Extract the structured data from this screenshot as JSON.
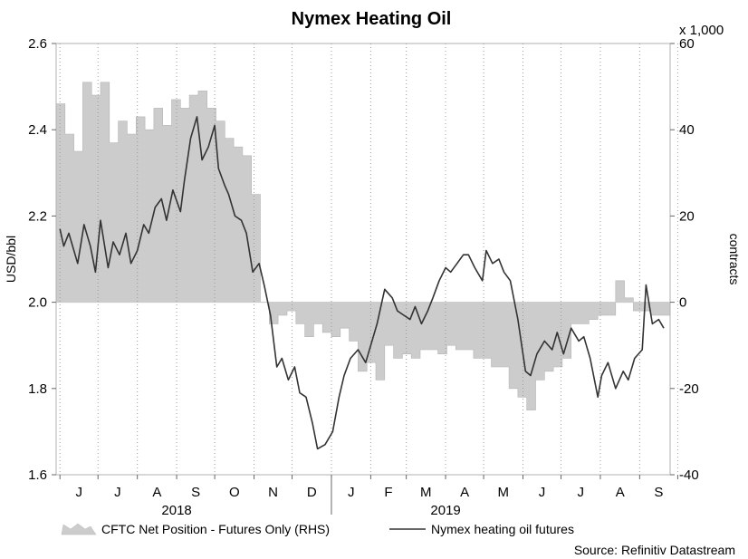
{
  "chart_data": {
    "type": "line",
    "title": "Nymex Heating Oil",
    "y_left_label": "USD/bbl",
    "y_right_label": "contracts",
    "y_right_unit": "x 1,000",
    "y_left_lim": [
      1.6,
      2.6
    ],
    "y_right_lim": [
      -40,
      60
    ],
    "y_left_ticks": [
      "1.6",
      "1.8",
      "2.0",
      "2.2",
      "2.4",
      "2.6"
    ],
    "y_right_ticks": [
      "-40",
      "-20",
      "0",
      "20",
      "40",
      "60"
    ],
    "x_month_labels": [
      "J",
      "J",
      "A",
      "S",
      "O",
      "N",
      "D",
      "J",
      "F",
      "M",
      "A",
      "M",
      "J",
      "J",
      "A",
      "S"
    ],
    "x_year_labels": [
      "2018",
      "2019"
    ],
    "grid": "vertical-dotted",
    "legend": "bottom",
    "source": "Source: Refinitiv Datastream",
    "series": [
      {
        "name": "CFTC Net Position - Futures Only (RHS)",
        "style": "area",
        "color": "#cccccc",
        "axis": "right",
        "x": [
          "2018-06-01",
          "2018-06-05",
          "2018-06-12",
          "2018-06-19",
          "2018-06-26",
          "2018-07-03",
          "2018-07-10",
          "2018-07-17",
          "2018-07-24",
          "2018-07-31",
          "2018-08-07",
          "2018-08-14",
          "2018-08-21",
          "2018-08-28",
          "2018-09-04",
          "2018-09-11",
          "2018-09-18",
          "2018-09-25",
          "2018-10-02",
          "2018-10-09",
          "2018-10-16",
          "2018-10-23",
          "2018-10-30",
          "2018-11-06",
          "2018-11-13",
          "2018-11-20",
          "2018-11-27",
          "2018-12-04",
          "2018-12-11",
          "2018-12-18",
          "2018-12-25",
          "2019-01-01",
          "2019-01-08",
          "2019-01-15",
          "2019-01-22",
          "2019-01-29",
          "2019-02-05",
          "2019-02-12",
          "2019-02-19",
          "2019-02-26",
          "2019-03-05",
          "2019-03-12",
          "2019-03-19",
          "2019-03-26",
          "2019-04-02",
          "2019-04-09",
          "2019-04-16",
          "2019-04-23",
          "2019-04-30",
          "2019-05-07",
          "2019-05-14",
          "2019-05-21",
          "2019-05-28",
          "2019-06-04",
          "2019-06-11",
          "2019-06-18",
          "2019-06-25",
          "2019-07-02",
          "2019-07-09",
          "2019-07-16",
          "2019-07-23",
          "2019-07-30",
          "2019-08-06",
          "2019-08-13",
          "2019-08-20",
          "2019-08-27",
          "2019-09-03",
          "2019-09-10",
          "2019-09-17"
        ],
        "values": [
          46,
          39,
          35,
          51,
          48,
          51,
          37,
          42,
          39,
          43,
          40,
          45,
          41,
          47,
          45,
          48,
          49,
          45,
          42,
          38,
          36,
          34,
          25,
          0,
          -5,
          -3,
          -2,
          -5,
          -8,
          -5,
          -7,
          -8,
          -6,
          -9,
          -16,
          -14,
          -18,
          -10,
          -13,
          -12,
          -13,
          -11,
          -11,
          -12,
          -10,
          -11,
          -11,
          -13,
          -13,
          -15,
          -15,
          -20,
          -22,
          -25,
          -18,
          -16,
          -15,
          -13,
          -5,
          -5,
          -4,
          -3,
          -3,
          5,
          1,
          -2,
          -2,
          -3,
          -3
        ],
        "values_note_end": "series ends near -6"
      },
      {
        "name": "Nymex heating oil futures",
        "style": "line",
        "color": "#333333",
        "axis": "left",
        "x": [
          "2018-06-01",
          "2018-06-04",
          "2018-06-08",
          "2018-06-12",
          "2018-06-15",
          "2018-06-20",
          "2018-06-25",
          "2018-06-29",
          "2018-07-03",
          "2018-07-09",
          "2018-07-13",
          "2018-07-18",
          "2018-07-23",
          "2018-07-27",
          "2018-08-01",
          "2018-08-06",
          "2018-08-10",
          "2018-08-15",
          "2018-08-20",
          "2018-08-24",
          "2018-08-29",
          "2018-09-04",
          "2018-09-07",
          "2018-09-12",
          "2018-09-17",
          "2018-09-21",
          "2018-09-26",
          "2018-10-01",
          "2018-10-04",
          "2018-10-09",
          "2018-10-12",
          "2018-10-17",
          "2018-10-22",
          "2018-10-26",
          "2018-10-31",
          "2018-11-05",
          "2018-11-09",
          "2018-11-14",
          "2018-11-19",
          "2018-11-23",
          "2018-11-28",
          "2018-12-03",
          "2018-12-07",
          "2018-12-12",
          "2018-12-17",
          "2018-12-21",
          "2018-12-27",
          "2019-01-02",
          "2019-01-07",
          "2019-01-11",
          "2019-01-16",
          "2019-01-22",
          "2019-01-28",
          "2019-02-01",
          "2019-02-06",
          "2019-02-12",
          "2019-02-18",
          "2019-02-22",
          "2019-02-27",
          "2019-03-04",
          "2019-03-08",
          "2019-03-13",
          "2019-03-18",
          "2019-03-22",
          "2019-03-27",
          "2019-04-01",
          "2019-04-05",
          "2019-04-10",
          "2019-04-15",
          "2019-04-19",
          "2019-04-24",
          "2019-04-30",
          "2019-05-03",
          "2019-05-08",
          "2019-05-13",
          "2019-05-17",
          "2019-05-22",
          "2019-05-28",
          "2019-06-03",
          "2019-06-07",
          "2019-06-12",
          "2019-06-18",
          "2019-06-24",
          "2019-06-28",
          "2019-07-03",
          "2019-07-09",
          "2019-07-15",
          "2019-07-19",
          "2019-07-24",
          "2019-07-30",
          "2019-08-02",
          "2019-08-07",
          "2019-08-13",
          "2019-08-19",
          "2019-08-23",
          "2019-08-28",
          "2019-09-03",
          "2019-09-06",
          "2019-09-11",
          "2019-09-16",
          "2019-09-20"
        ],
        "values": [
          2.17,
          2.13,
          2.16,
          2.12,
          2.09,
          2.18,
          2.13,
          2.07,
          2.19,
          2.08,
          2.14,
          2.11,
          2.16,
          2.09,
          2.12,
          2.18,
          2.16,
          2.22,
          2.24,
          2.19,
          2.26,
          2.21,
          2.28,
          2.38,
          2.43,
          2.33,
          2.36,
          2.41,
          2.31,
          2.27,
          2.25,
          2.2,
          2.19,
          2.16,
          2.07,
          2.09,
          2.04,
          1.97,
          1.85,
          1.87,
          1.82,
          1.85,
          1.79,
          1.78,
          1.72,
          1.66,
          1.67,
          1.7,
          1.78,
          1.83,
          1.87,
          1.89,
          1.86,
          1.9,
          1.95,
          2.03,
          2.01,
          1.98,
          1.97,
          1.96,
          1.99,
          1.95,
          1.98,
          2.01,
          2.05,
          2.08,
          2.07,
          2.09,
          2.11,
          2.11,
          2.08,
          2.05,
          2.12,
          2.09,
          2.1,
          2.07,
          2.05,
          1.96,
          1.84,
          1.83,
          1.88,
          1.91,
          1.89,
          1.93,
          1.88,
          1.94,
          1.91,
          1.92,
          1.87,
          1.78,
          1.83,
          1.86,
          1.8,
          1.84,
          1.82,
          1.87,
          1.89,
          2.04,
          1.95,
          1.96,
          1.94
        ]
      }
    ]
  }
}
